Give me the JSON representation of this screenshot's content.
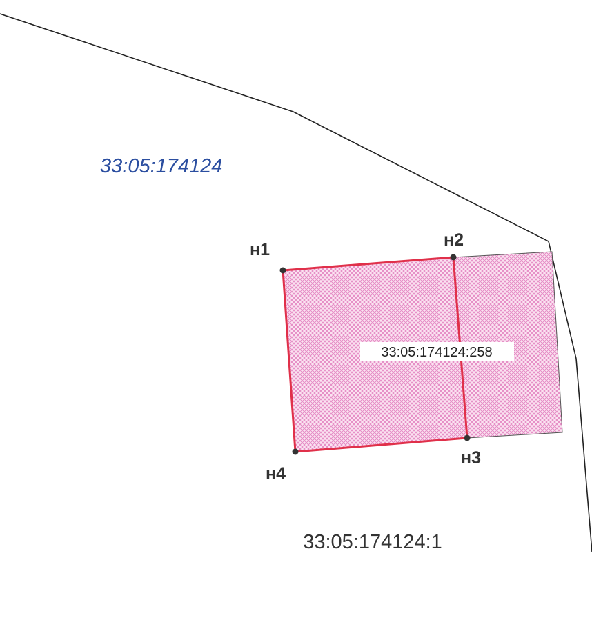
{
  "quarter": {
    "label": "33:05:174124"
  },
  "parcel": {
    "label": "33:05:174124:258"
  },
  "parent_parcel": {
    "label": "33:05:174124:1"
  },
  "points": [
    {
      "label": "н1"
    },
    {
      "label": "н2"
    },
    {
      "label": "н3"
    },
    {
      "label": "н4"
    }
  ]
}
